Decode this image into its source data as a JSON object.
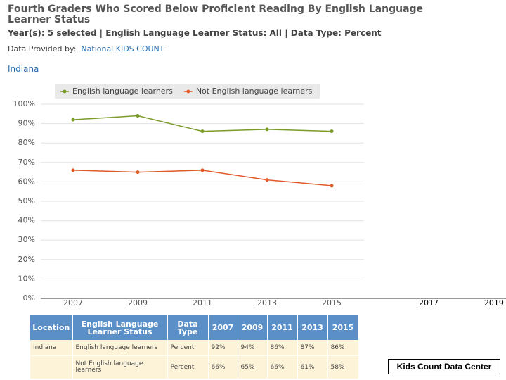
{
  "header": {
    "title": "Fourth Graders Who Scored Below Proficient Reading By English Language Learner Status",
    "subtitle": "Year(s): 5 selected | English Language Learner Status: All | Data Type: Percent",
    "provided_by_label": "Data Provided by:",
    "provider": "National KIDS COUNT",
    "location": "Indiana"
  },
  "chart_data": {
    "type": "line",
    "categories": [
      "2007",
      "2009",
      "2011",
      "2013",
      "2015"
    ],
    "series": [
      {
        "name": "English language learners",
        "color": "#7a9a2a",
        "values": [
          92,
          94,
          86,
          87,
          86
        ]
      },
      {
        "name": "Not English language learners",
        "color": "#e05a2a",
        "values": [
          66,
          65,
          66,
          61,
          58
        ]
      }
    ],
    "ylim": [
      0,
      100
    ],
    "yticks": [
      {
        "value": 0,
        "label": "0%"
      },
      {
        "value": 10,
        "label": "10%"
      },
      {
        "value": 20,
        "label": "20%"
      },
      {
        "value": 30,
        "label": "30%"
      },
      {
        "value": 40,
        "label": "40%"
      },
      {
        "value": 50,
        "label": "50%"
      },
      {
        "value": 60,
        "label": "60%"
      },
      {
        "value": 70,
        "label": "70%"
      },
      {
        "value": 80,
        "label": "80%"
      },
      {
        "value": 90,
        "label": "90%"
      },
      {
        "value": 100,
        "label": "100%"
      }
    ],
    "grid": true,
    "legend": "top"
  },
  "overlay_years": [
    "2017",
    "2019"
  ],
  "table": {
    "columns": [
      "Location",
      "English Language Learner Status",
      "Data Type",
      "2007",
      "2009",
      "2011",
      "2013",
      "2015"
    ],
    "rows": [
      [
        "Indiana",
        "English language learners",
        "Percent",
        "92%",
        "94%",
        "86%",
        "87%",
        "86%"
      ],
      [
        null,
        "Not English language learners",
        "Percent",
        "66%",
        "65%",
        "66%",
        "61%",
        "58%"
      ]
    ]
  },
  "footer": "Kids Count Data Center"
}
